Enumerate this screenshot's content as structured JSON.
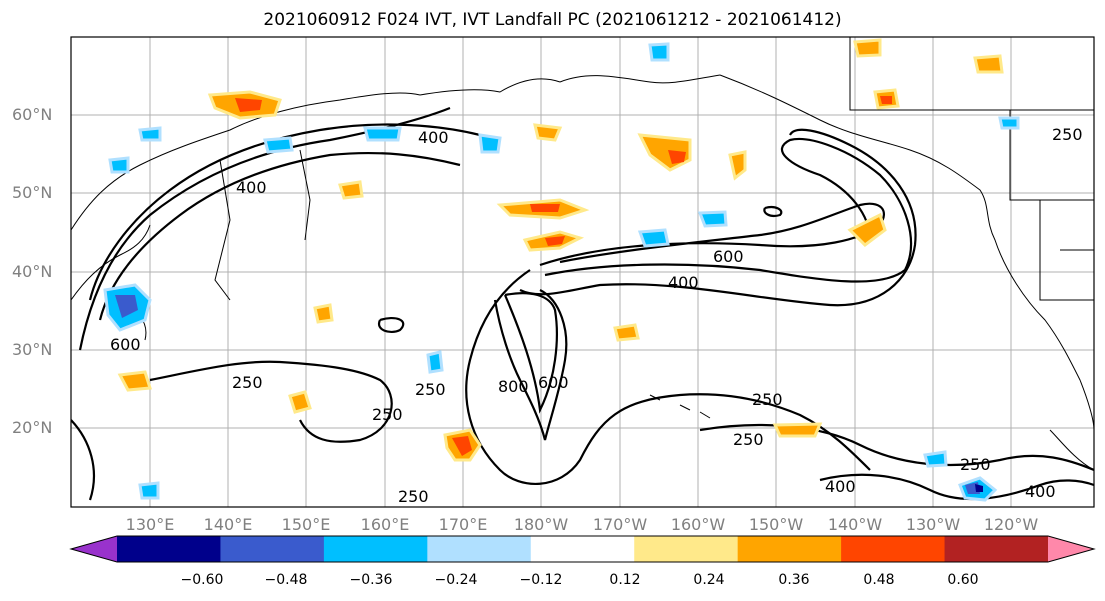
{
  "title": "2021060912 F024 IVT, IVT Landfall PC (2021061212 - 2021061412)",
  "lat_labels": [
    "60°N",
    "50°N",
    "40°N",
    "30°N",
    "20°N"
  ],
  "lon_labels": [
    "130°E",
    "140°E",
    "150°E",
    "160°E",
    "170°E",
    "180°W",
    "170°W",
    "160°W",
    "150°W",
    "140°W",
    "130°W",
    "120°W"
  ],
  "contour_labels": [
    "400",
    "400",
    "600",
    "400",
    "600",
    "800",
    "600",
    "250",
    "250",
    "250",
    "250",
    "250",
    "250",
    "400",
    "250",
    "400",
    "250"
  ],
  "colorbar": {
    "colors": [
      "#9932cc",
      "#00008b",
      "#3a5bcd",
      "#00bfff",
      "#b0e0ff",
      "#ffffff",
      "#ffe98a",
      "#ffa500",
      "#ff4500",
      "#b22222",
      "#ff88aa"
    ],
    "tick_labels": [
      "−0.60",
      "−0.48",
      "−0.36",
      "−0.24",
      "−0.12",
      "0.12",
      "0.24",
      "0.36",
      "0.48",
      "0.60"
    ]
  }
}
